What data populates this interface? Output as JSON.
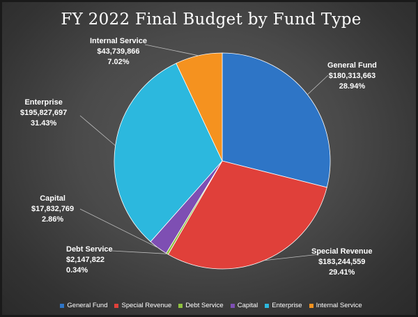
{
  "chart_data": {
    "type": "pie",
    "title": "FY 2022 Final Budget by Fund Type",
    "slices": [
      {
        "name": "General Fund",
        "value": 180313663,
        "value_label": "$180,313,663",
        "percent_label": "28.94%",
        "color": "#2e75c6"
      },
      {
        "name": "Special Revenue",
        "value": 183244559,
        "value_label": "$183,244,559",
        "percent_label": "29.41%",
        "color": "#e0403a"
      },
      {
        "name": "Debt Service",
        "value": 2147822,
        "value_label": "$2,147,822",
        "percent_label": "0.34%",
        "color": "#8fc13f"
      },
      {
        "name": "Capital",
        "value": 17832769,
        "value_label": "$17,832,769",
        "percent_label": "2.86%",
        "color": "#7e4fb3"
      },
      {
        "name": "Enterprise",
        "value": 195827697,
        "value_label": "$195,827,697",
        "percent_label": "31.43%",
        "color": "#2cb8de"
      },
      {
        "name": "Internal Service",
        "value": 43739866,
        "value_label": "$43,739,866",
        "percent_label": "7.02%",
        "color": "#f5921f"
      }
    ],
    "legend_position": "bottom",
    "start_angle_deg": 0,
    "direction": "clockwise"
  }
}
